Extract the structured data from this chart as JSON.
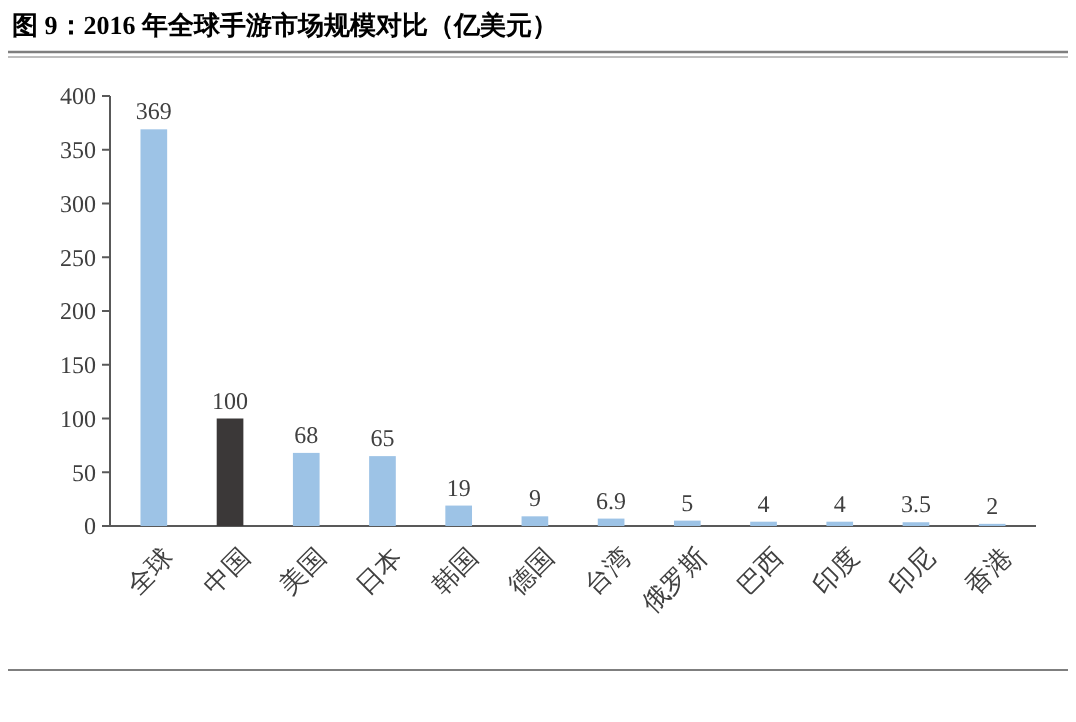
{
  "chart_data": {
    "type": "bar",
    "title": "图 9：2016 年全球手游市场规模对比（亿美元）",
    "categories": [
      "全球",
      "中国",
      "美国",
      "日本",
      "韩国",
      "德国",
      "台湾",
      "俄罗斯",
      "巴西",
      "印度",
      "印尼",
      "香港"
    ],
    "values": [
      369,
      100,
      68,
      65,
      19,
      9,
      6.9,
      5,
      4,
      4,
      3.5,
      2
    ],
    "colors": [
      "#9dc3e6",
      "#3b3838",
      "#9dc3e6",
      "#9dc3e6",
      "#9dc3e6",
      "#9dc3e6",
      "#9dc3e6",
      "#9dc3e6",
      "#9dc3e6",
      "#9dc3e6",
      "#9dc3e6",
      "#9dc3e6"
    ],
    "ylim": [
      0,
      400
    ],
    "yticks": [
      0,
      50,
      100,
      150,
      200,
      250,
      300,
      350,
      400
    ],
    "grid": false,
    "data_labels": true
  }
}
